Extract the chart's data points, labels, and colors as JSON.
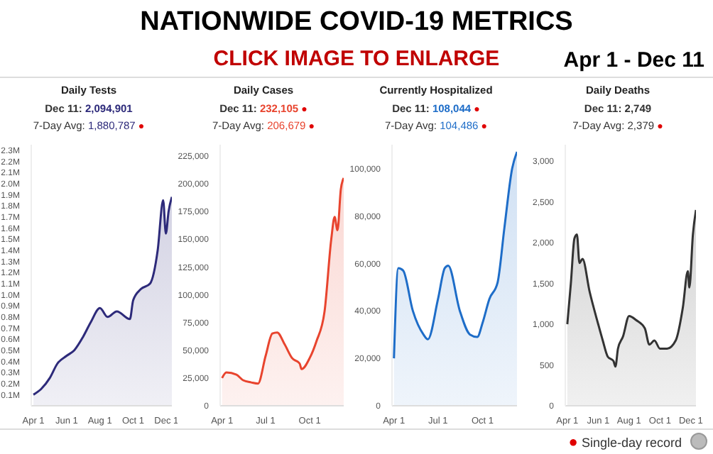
{
  "chart_data": [
    {
      "type": "other",
      "title": "NATIONWIDE COVID-19 METRICS",
      "subtitle": "CLICK IMAGE TO ENLARGE",
      "annotations": [
        "Apr 1 - Dec 11",
        "● Single-day record"
      ]
    },
    {
      "type": "area",
      "title": "Daily Tests",
      "annotations": [
        "Dec 11: 2,094,901",
        "7-Day Avg: 1,880,787 ●"
      ],
      "x": [
        "--04-01",
        "--04-15",
        "--05-01",
        "--05-15",
        "--06-01",
        "--06-15",
        "--07-01",
        "--07-15",
        "--08-01",
        "--08-15",
        "--09-01",
        "--09-25",
        "--10-01",
        "--10-15",
        "--11-01",
        "--11-15",
        "--11-25",
        "--11-30",
        "--12-05",
        "--12-11"
      ],
      "series": [
        {
          "color": "#2d2a7a",
          "values": [
            100000,
            150000,
            250000,
            380000,
            450000,
            500000,
            620000,
            750000,
            880000,
            800000,
            850000,
            780000,
            950000,
            1050000,
            1100000,
            1400000,
            1850000,
            1550000,
            1750000,
            1880000
          ]
        }
      ],
      "xlim": [
        "--03-28",
        "--12-11"
      ],
      "xticks": [
        {
          "value": "--04-01",
          "label": "Apr 1"
        },
        {
          "value": "--06-01",
          "label": "Jun 1"
        },
        {
          "value": "--08-01",
          "label": "Aug 1"
        },
        {
          "value": "--10-01",
          "label": "Oct 1"
        },
        {
          "value": "--12-01",
          "label": "Dec 1"
        }
      ],
      "ylim": [
        0,
        2350000
      ],
      "yticks": [
        {
          "value": 100000,
          "label": "0.1M"
        },
        {
          "value": 200000,
          "label": "0.2M"
        },
        {
          "value": 300000,
          "label": "0.3M"
        },
        {
          "value": 400000,
          "label": "0.4M"
        },
        {
          "value": 500000,
          "label": "0.5M"
        },
        {
          "value": 600000,
          "label": "0.6M"
        },
        {
          "value": 700000,
          "label": "0.7M"
        },
        {
          "value": 800000,
          "label": "0.8M"
        },
        {
          "value": 900000,
          "label": "0.9M"
        },
        {
          "value": 1000000,
          "label": "1.0M"
        },
        {
          "value": 1100000,
          "label": "1.1M"
        },
        {
          "value": 1200000,
          "label": "1.2M"
        },
        {
          "value": 1300000,
          "label": "1.3M"
        },
        {
          "value": 1400000,
          "label": "1.4M"
        },
        {
          "value": 1500000,
          "label": "1.5M"
        },
        {
          "value": 1600000,
          "label": "1.6M"
        },
        {
          "value": 1700000,
          "label": "1.7M"
        },
        {
          "value": 1800000,
          "label": "1.8M"
        },
        {
          "value": 1900000,
          "label": "1.9M"
        },
        {
          "value": 2000000,
          "label": "2.0M"
        },
        {
          "value": 2100000,
          "label": "2.1M"
        },
        {
          "value": 2200000,
          "label": "2.2M"
        },
        {
          "value": 2300000,
          "label": "2.3M"
        }
      ]
    },
    {
      "type": "area",
      "title": "Daily Cases",
      "annotations": [
        "Dec 11: 232,105 ●",
        "7-Day Avg: 206,679 ●"
      ],
      "x": [
        "--04-01",
        "--04-10",
        "--05-01",
        "--05-15",
        "--06-01",
        "--06-15",
        "--07-01",
        "--07-15",
        "--07-25",
        "--08-10",
        "--08-25",
        "--09-10",
        "--09-14",
        "--10-01",
        "--10-15",
        "--11-01",
        "--11-15",
        "--11-22",
        "--11-28",
        "--12-05",
        "--12-11"
      ],
      "series": [
        {
          "color": "#e8442e",
          "values": [
            25000,
            30000,
            28000,
            23000,
            21000,
            20000,
            45000,
            65000,
            66000,
            55000,
            43000,
            38000,
            33000,
            43000,
            58000,
            85000,
            150000,
            170000,
            158000,
            195000,
            205000
          ]
        }
      ],
      "xlim": [
        "--03-28",
        "--12-11"
      ],
      "xticks": [
        {
          "value": "--04-01",
          "label": "Apr 1"
        },
        {
          "value": "--07-01",
          "label": "Jul 1"
        },
        {
          "value": "--10-01",
          "label": "Oct 1"
        }
      ],
      "ylim": [
        0,
        235000
      ],
      "yticks": [
        {
          "value": 0,
          "label": "0"
        },
        {
          "value": 25000,
          "label": "25,000"
        },
        {
          "value": 50000,
          "label": "50,000"
        },
        {
          "value": 75000,
          "label": "75,000"
        },
        {
          "value": 100000,
          "label": "100,000"
        },
        {
          "value": 125000,
          "label": "125,000"
        },
        {
          "value": 150000,
          "label": "150,000"
        },
        {
          "value": 175000,
          "label": "175,000"
        },
        {
          "value": 200000,
          "label": "200,000"
        },
        {
          "value": 225000,
          "label": "225,000"
        }
      ]
    },
    {
      "type": "area",
      "title": "Currently Hospitalized",
      "annotations": [
        "Dec 11: 108,044 ●",
        "7-Day Avg: 104,486 ●"
      ],
      "x": [
        "--04-01",
        "--04-10",
        "--04-20",
        "--05-10",
        "--06-01",
        "--06-10",
        "--07-01",
        "--07-15",
        "--07-22",
        "--08-15",
        "--09-05",
        "--09-20",
        "--10-01",
        "--10-15",
        "--11-01",
        "--11-15",
        "--12-01",
        "--12-11"
      ],
      "series": [
        {
          "color": "#1e6dc8",
          "values": [
            20000,
            58000,
            57000,
            40000,
            30000,
            28000,
            45000,
            58000,
            59000,
            40000,
            30000,
            29000,
            35000,
            45000,
            52000,
            75000,
            100000,
            107000
          ]
        }
      ],
      "xlim": [
        "--03-28",
        "--12-11"
      ],
      "xticks": [
        {
          "value": "--04-01",
          "label": "Apr 1"
        },
        {
          "value": "--07-01",
          "label": "Jul 1"
        },
        {
          "value": "--10-01",
          "label": "Oct 1"
        }
      ],
      "ylim": [
        0,
        110000
      ],
      "yticks": [
        {
          "value": 0,
          "label": "0"
        },
        {
          "value": 20000,
          "label": "20,000"
        },
        {
          "value": 40000,
          "label": "40,000"
        },
        {
          "value": 60000,
          "label": "60,000"
        },
        {
          "value": 80000,
          "label": "80,000"
        },
        {
          "value": 100000,
          "label": "100,000"
        }
      ]
    },
    {
      "type": "area",
      "title": "Daily Deaths",
      "annotations": [
        "Dec 11: 2,749",
        "7-Day Avg: 2,379 ●"
      ],
      "x": [
        "--04-01",
        "--04-08",
        "--04-15",
        "--04-20",
        "--04-25",
        "--05-01",
        "--05-15",
        "--06-01",
        "--06-10",
        "--06-20",
        "--07-01",
        "--07-05",
        "--07-10",
        "--07-20",
        "--08-01",
        "--08-15",
        "--09-01",
        "--09-10",
        "--09-20",
        "--10-01",
        "--10-15",
        "--11-01",
        "--11-15",
        "--11-25",
        "--11-28",
        "--12-05",
        "--12-11"
      ],
      "series": [
        {
          "color": "#333333",
          "values": [
            1000,
            1500,
            2050,
            2100,
            1750,
            1800,
            1400,
            1000,
            800,
            600,
            550,
            480,
            700,
            850,
            1100,
            1050,
            950,
            750,
            800,
            700,
            700,
            800,
            1200,
            1650,
            1450,
            2100,
            2400
          ]
        }
      ],
      "xlim": [
        "--03-28",
        "--12-11"
      ],
      "xticks": [
        {
          "value": "--04-01",
          "label": "Apr 1"
        },
        {
          "value": "--06-01",
          "label": "Jun 1"
        },
        {
          "value": "--08-01",
          "label": "Aug 1"
        },
        {
          "value": "--10-01",
          "label": "Oct 1"
        },
        {
          "value": "--12-01",
          "label": "Dec 1"
        }
      ],
      "ylim": [
        0,
        3200
      ],
      "yticks": [
        {
          "value": 0,
          "label": "0"
        },
        {
          "value": 500,
          "label": "500"
        },
        {
          "value": 1000,
          "label": "1,000"
        },
        {
          "value": 1500,
          "label": "1,500"
        },
        {
          "value": 2000,
          "label": "2,000"
        },
        {
          "value": 2500,
          "label": "2,500"
        },
        {
          "value": 3000,
          "label": "3,000"
        }
      ]
    }
  ]
}
